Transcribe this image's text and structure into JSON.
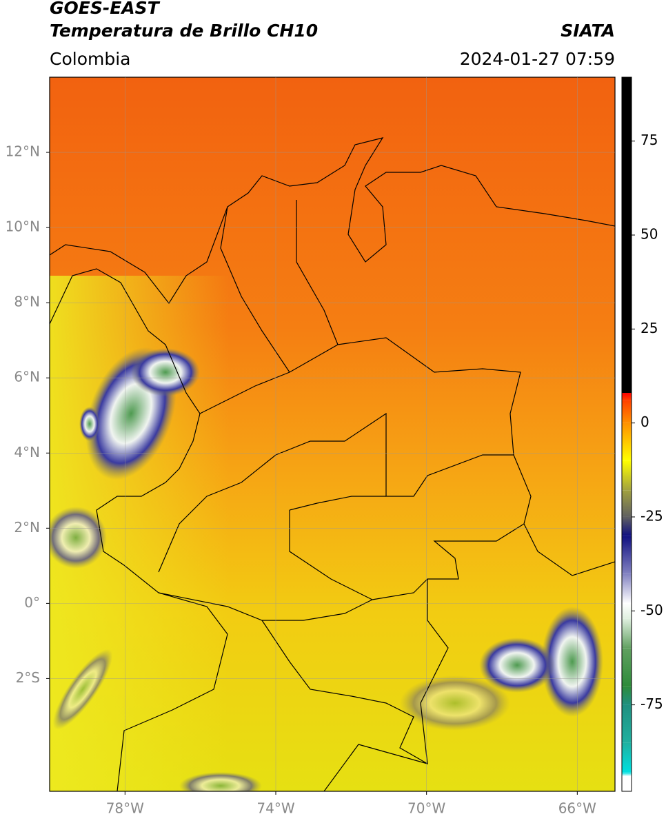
{
  "header": {
    "title": "GOES-EAST",
    "subtitle": "Temperatura de Brillo CH10",
    "source": "SIATA",
    "region": "Colombia",
    "datetime": "2024-01-27 07:59"
  },
  "map": {
    "xlim": [
      -80,
      -65
    ],
    "ylim": [
      -5,
      14
    ],
    "xticks": [
      {
        "value": -78,
        "label": "78°W"
      },
      {
        "value": -74,
        "label": "74°W"
      },
      {
        "value": -70,
        "label": "70°W"
      },
      {
        "value": -66,
        "label": "66°W"
      }
    ],
    "yticks": [
      {
        "value": 12,
        "label": "12°N"
      },
      {
        "value": 10,
        "label": "10°N"
      },
      {
        "value": 8,
        "label": "8°N"
      },
      {
        "value": 6,
        "label": "6°N"
      },
      {
        "value": 4,
        "label": "4°N"
      },
      {
        "value": 2,
        "label": "2°N"
      },
      {
        "value": 0,
        "label": "0°"
      },
      {
        "value": -2,
        "label": "2°S"
      }
    ],
    "grid": true
  },
  "colorbar": {
    "clim": [
      -98,
      92
    ],
    "ticks": [
      75,
      50,
      25,
      0,
      -25,
      -50,
      -75
    ],
    "colormap": [
      {
        "value": -98,
        "color": "#ffffff"
      },
      {
        "value": -94,
        "color": "#ffffff"
      },
      {
        "value": -93,
        "color": "#00e0e0"
      },
      {
        "value": -85,
        "color": "#20b0a0"
      },
      {
        "value": -75,
        "color": "#209080"
      },
      {
        "value": -70,
        "color": "#2e8b3a"
      },
      {
        "value": -60,
        "color": "#60a060"
      },
      {
        "value": -52,
        "color": "#e0f0e0"
      },
      {
        "value": -48,
        "color": "#ffffff"
      },
      {
        "value": -40,
        "color": "#8080c0"
      },
      {
        "value": -30,
        "color": "#101080"
      },
      {
        "value": -25,
        "color": "#606060"
      },
      {
        "value": -18,
        "color": "#a0a040"
      },
      {
        "value": -10,
        "color": "#ffff00"
      },
      {
        "value": 0,
        "color": "#ff9000"
      },
      {
        "value": 6,
        "color": "#ff4000"
      },
      {
        "value": 8,
        "color": "#ff0000"
      },
      {
        "value": 8,
        "color": "#000000"
      },
      {
        "value": 92,
        "color": "#000000"
      }
    ]
  }
}
